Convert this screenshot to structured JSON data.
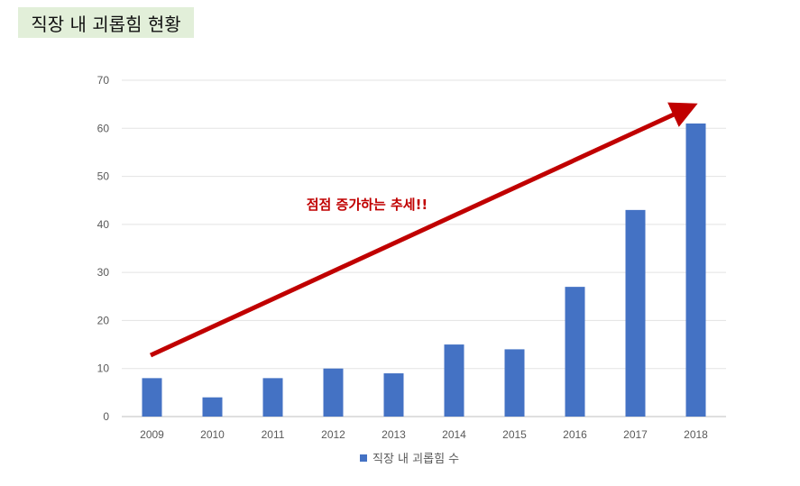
{
  "header": {
    "title": "직장 내 괴롭힘 현황"
  },
  "chart_data": {
    "type": "bar",
    "categories": [
      "2009",
      "2010",
      "2011",
      "2012",
      "2013",
      "2014",
      "2015",
      "2016",
      "2017",
      "2018"
    ],
    "series": [
      {
        "name": "직장 내 괴롭힘 수",
        "values": [
          8,
          4,
          8,
          10,
          9,
          15,
          14,
          27,
          43,
          61
        ],
        "color": "#4472c4"
      }
    ],
    "ylim": [
      0,
      70
    ],
    "yticks": [
      0,
      10,
      20,
      30,
      40,
      50,
      60,
      70
    ],
    "grid": true,
    "legend_position": "bottom",
    "annotation": {
      "text": "점점 증가하는 추세!!",
      "color": "#c00000"
    },
    "trend_arrow_color": "#c00000"
  }
}
